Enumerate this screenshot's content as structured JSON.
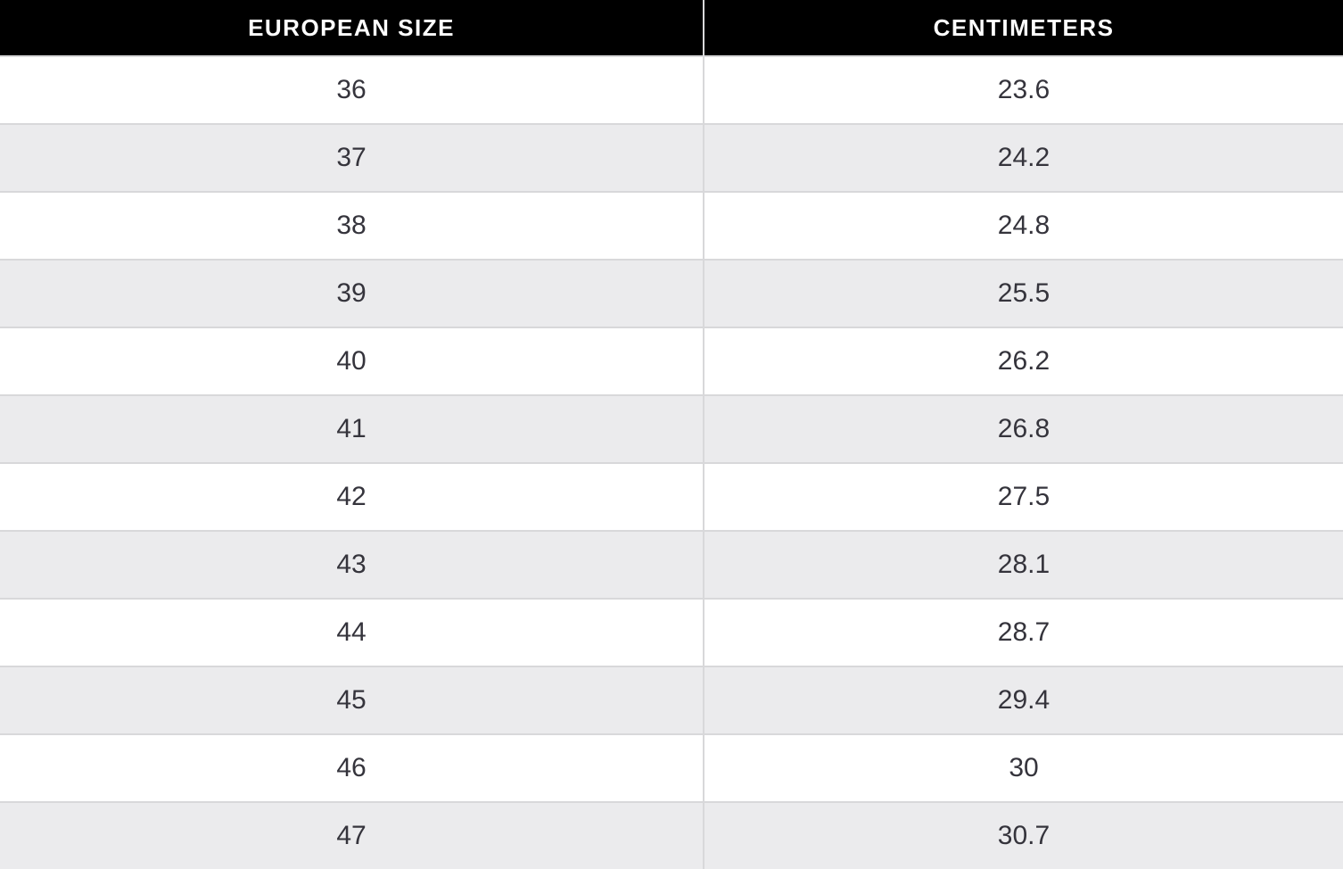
{
  "colors": {
    "header_bg": "#000000",
    "header_text": "#ffffff",
    "row_bg": "#ffffff",
    "row_alt_bg": "#ebebed",
    "border": "#d8d8da",
    "cell_text": "#35343c"
  },
  "chart_data": {
    "type": "table",
    "columns": [
      "EUROPEAN SIZE",
      "CENTIMETERS"
    ],
    "rows": [
      [
        "36",
        "23.6"
      ],
      [
        "37",
        "24.2"
      ],
      [
        "38",
        "24.8"
      ],
      [
        "39",
        "25.5"
      ],
      [
        "40",
        "26.2"
      ],
      [
        "41",
        "26.8"
      ],
      [
        "42",
        "27.5"
      ],
      [
        "43",
        "28.1"
      ],
      [
        "44",
        "28.7"
      ],
      [
        "45",
        "29.4"
      ],
      [
        "46",
        "30"
      ],
      [
        "47",
        "30.7"
      ]
    ]
  }
}
